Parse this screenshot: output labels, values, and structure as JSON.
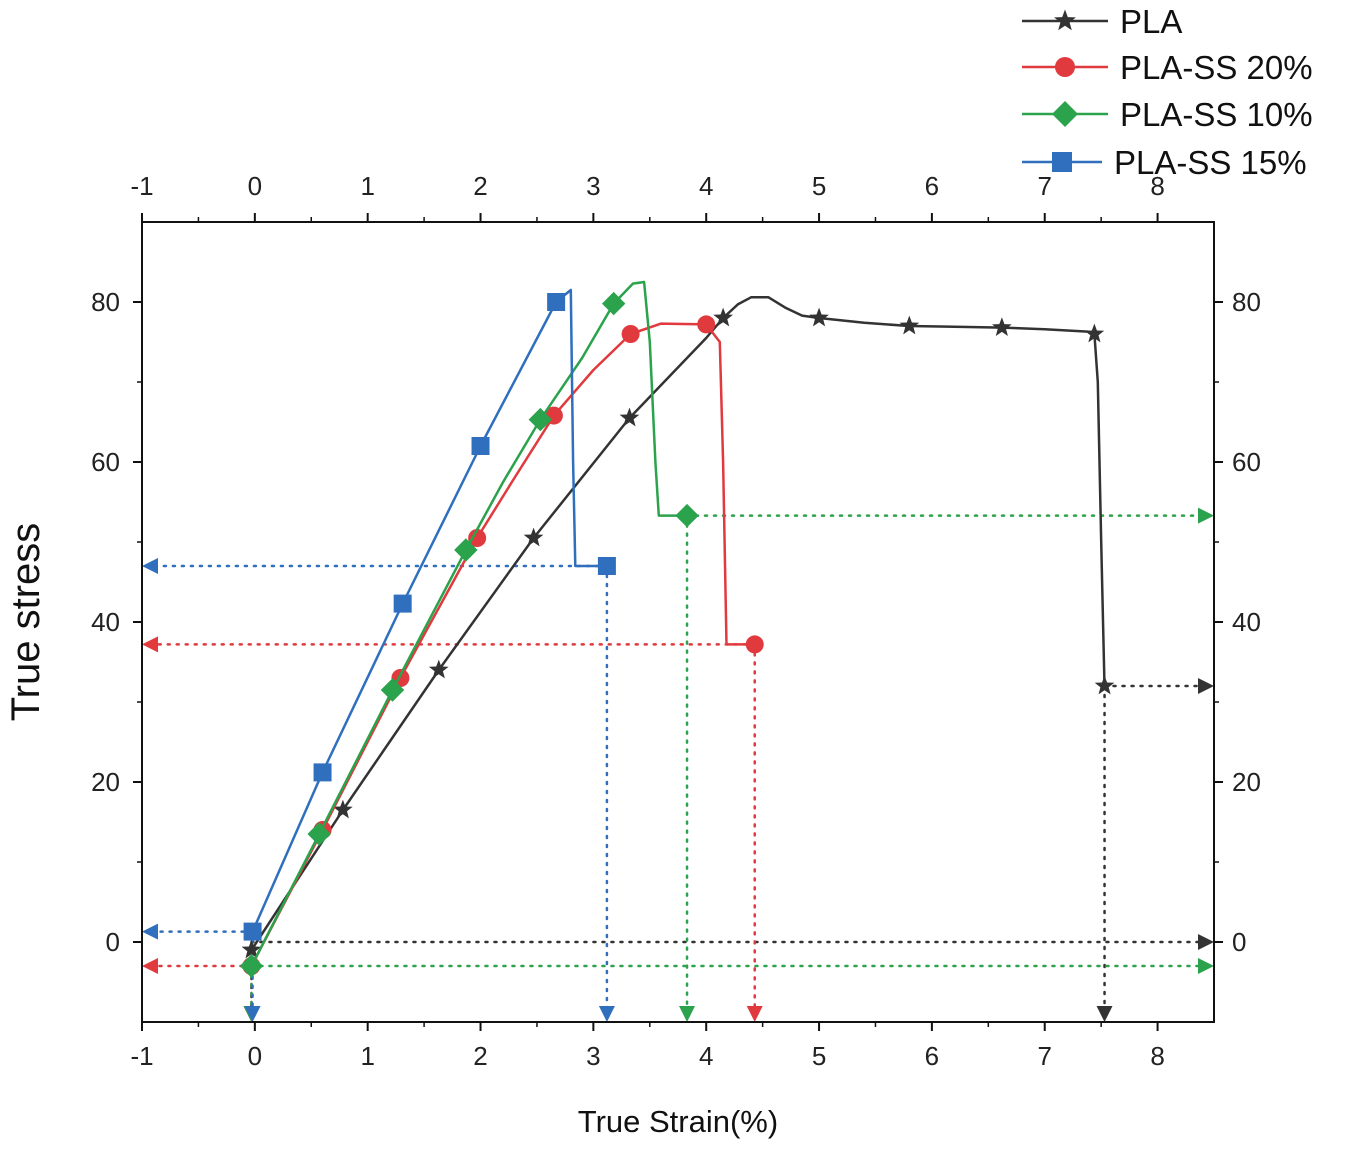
{
  "chart_data": {
    "type": "line",
    "title": "",
    "xlabel": "True Strain(%)",
    "ylabel": "True stress",
    "xlim": [
      -1,
      8.5
    ],
    "ylim": [
      -10,
      90
    ],
    "x_ticks": [
      -1,
      0,
      1,
      2,
      3,
      4,
      5,
      6,
      7,
      8
    ],
    "x_tick_labels": [
      "-1",
      "0",
      "1",
      "2",
      "3",
      "4",
      "5",
      "6",
      "7",
      "8"
    ],
    "y_ticks": [
      0,
      20,
      40,
      60,
      80
    ],
    "y_tick_labels": [
      "0",
      "20",
      "40",
      "60",
      "80"
    ],
    "top_axis_tick_labels": [
      "-1",
      "0",
      "1",
      "2",
      "3",
      "4",
      "5",
      "6",
      "7",
      "8"
    ],
    "right_axis_tick_labels": [
      "0",
      "20",
      "40",
      "60",
      "80"
    ],
    "legend_position": "top-right, above plot",
    "series": [
      {
        "name": "PLA",
        "color": "#333333",
        "marker": "star",
        "curve": [
          [
            -0.03,
            -1
          ],
          [
            0.78,
            16.5
          ],
          [
            1.63,
            34
          ],
          [
            2.47,
            50.5
          ],
          [
            3.32,
            65.5
          ],
          [
            4.0,
            75.5
          ],
          [
            4.15,
            78
          ],
          [
            4.28,
            79.7
          ],
          [
            4.4,
            80.6
          ],
          [
            4.55,
            80.6
          ],
          [
            4.7,
            79.3
          ],
          [
            4.85,
            78.3
          ],
          [
            5.0,
            78
          ],
          [
            5.4,
            77.4
          ],
          [
            5.8,
            77
          ],
          [
            6.2,
            76.9
          ],
          [
            6.62,
            76.8
          ],
          [
            7.0,
            76.6
          ],
          [
            7.38,
            76.3
          ],
          [
            7.44,
            76.0
          ],
          [
            7.47,
            70
          ],
          [
            7.5,
            50
          ],
          [
            7.53,
            32
          ]
        ],
        "markers": [
          [
            -0.03,
            -1
          ],
          [
            0.78,
            16.5
          ],
          [
            1.63,
            34
          ],
          [
            2.47,
            50.5
          ],
          [
            3.32,
            65.5
          ],
          [
            4.15,
            78
          ],
          [
            5.0,
            78
          ],
          [
            5.8,
            77
          ],
          [
            6.62,
            76.8
          ],
          [
            7.44,
            76.0
          ],
          [
            7.53,
            32
          ]
        ],
        "fracture": [
          7.53,
          32
        ],
        "guide_values": [
          0,
          32
        ]
      },
      {
        "name": "PLA-SS 20%",
        "color": "#e0393e",
        "marker": "circle",
        "curve": [
          [
            -0.03,
            -3
          ],
          [
            0.6,
            14
          ],
          [
            1.29,
            33
          ],
          [
            1.97,
            50.5
          ],
          [
            2.3,
            58
          ],
          [
            2.65,
            65.8
          ],
          [
            3.0,
            71.5
          ],
          [
            3.33,
            76
          ],
          [
            3.6,
            77.3
          ],
          [
            4.0,
            77.2
          ],
          [
            4.12,
            75
          ],
          [
            4.15,
            60
          ],
          [
            4.18,
            37.2
          ],
          [
            4.43,
            37.2
          ]
        ],
        "markers": [
          [
            -0.03,
            -3
          ],
          [
            0.6,
            14
          ],
          [
            1.29,
            33
          ],
          [
            1.97,
            50.5
          ],
          [
            2.65,
            65.8
          ],
          [
            3.33,
            76
          ],
          [
            4.0,
            77.2
          ],
          [
            4.43,
            37.2
          ]
        ],
        "fracture": [
          4.43,
          37.2
        ],
        "guide_values": [
          -3,
          37.2
        ]
      },
      {
        "name": "PLA-SS 10%",
        "color": "#2ba24c",
        "marker": "diamond",
        "curve": [
          [
            -0.03,
            -3
          ],
          [
            0.57,
            13.5
          ],
          [
            1.22,
            31.5
          ],
          [
            1.87,
            49
          ],
          [
            2.2,
            57.5
          ],
          [
            2.53,
            65.3
          ],
          [
            2.9,
            73
          ],
          [
            3.18,
            79.8
          ],
          [
            3.35,
            82.3
          ],
          [
            3.45,
            82.5
          ],
          [
            3.5,
            75
          ],
          [
            3.55,
            60
          ],
          [
            3.58,
            53.3
          ],
          [
            3.83,
            53.3
          ]
        ],
        "markers": [
          [
            -0.03,
            -3
          ],
          [
            0.57,
            13.5
          ],
          [
            1.22,
            31.5
          ],
          [
            1.87,
            49
          ],
          [
            2.53,
            65.3
          ],
          [
            3.18,
            79.8
          ],
          [
            3.83,
            53.3
          ]
        ],
        "fracture": [
          3.83,
          53.3
        ],
        "guide_values": [
          -3,
          53.3
        ]
      },
      {
        "name": "PLA-SS 15%",
        "color": "#2f6fbe",
        "marker": "square",
        "curve": [
          [
            -0.02,
            1.3
          ],
          [
            0.6,
            21.2
          ],
          [
            1.31,
            42.3
          ],
          [
            2.0,
            62
          ],
          [
            2.67,
            80
          ],
          [
            2.8,
            81.5
          ],
          [
            2.82,
            60
          ],
          [
            2.84,
            47
          ],
          [
            3.12,
            47
          ]
        ],
        "markers": [
          [
            -0.02,
            1.3
          ],
          [
            0.6,
            21.2
          ],
          [
            1.31,
            42.3
          ],
          [
            2.0,
            62
          ],
          [
            2.67,
            80
          ],
          [
            3.12,
            47
          ]
        ],
        "fracture": [
          3.12,
          47
        ],
        "guide_values": [
          1.3,
          47
        ]
      }
    ]
  }
}
